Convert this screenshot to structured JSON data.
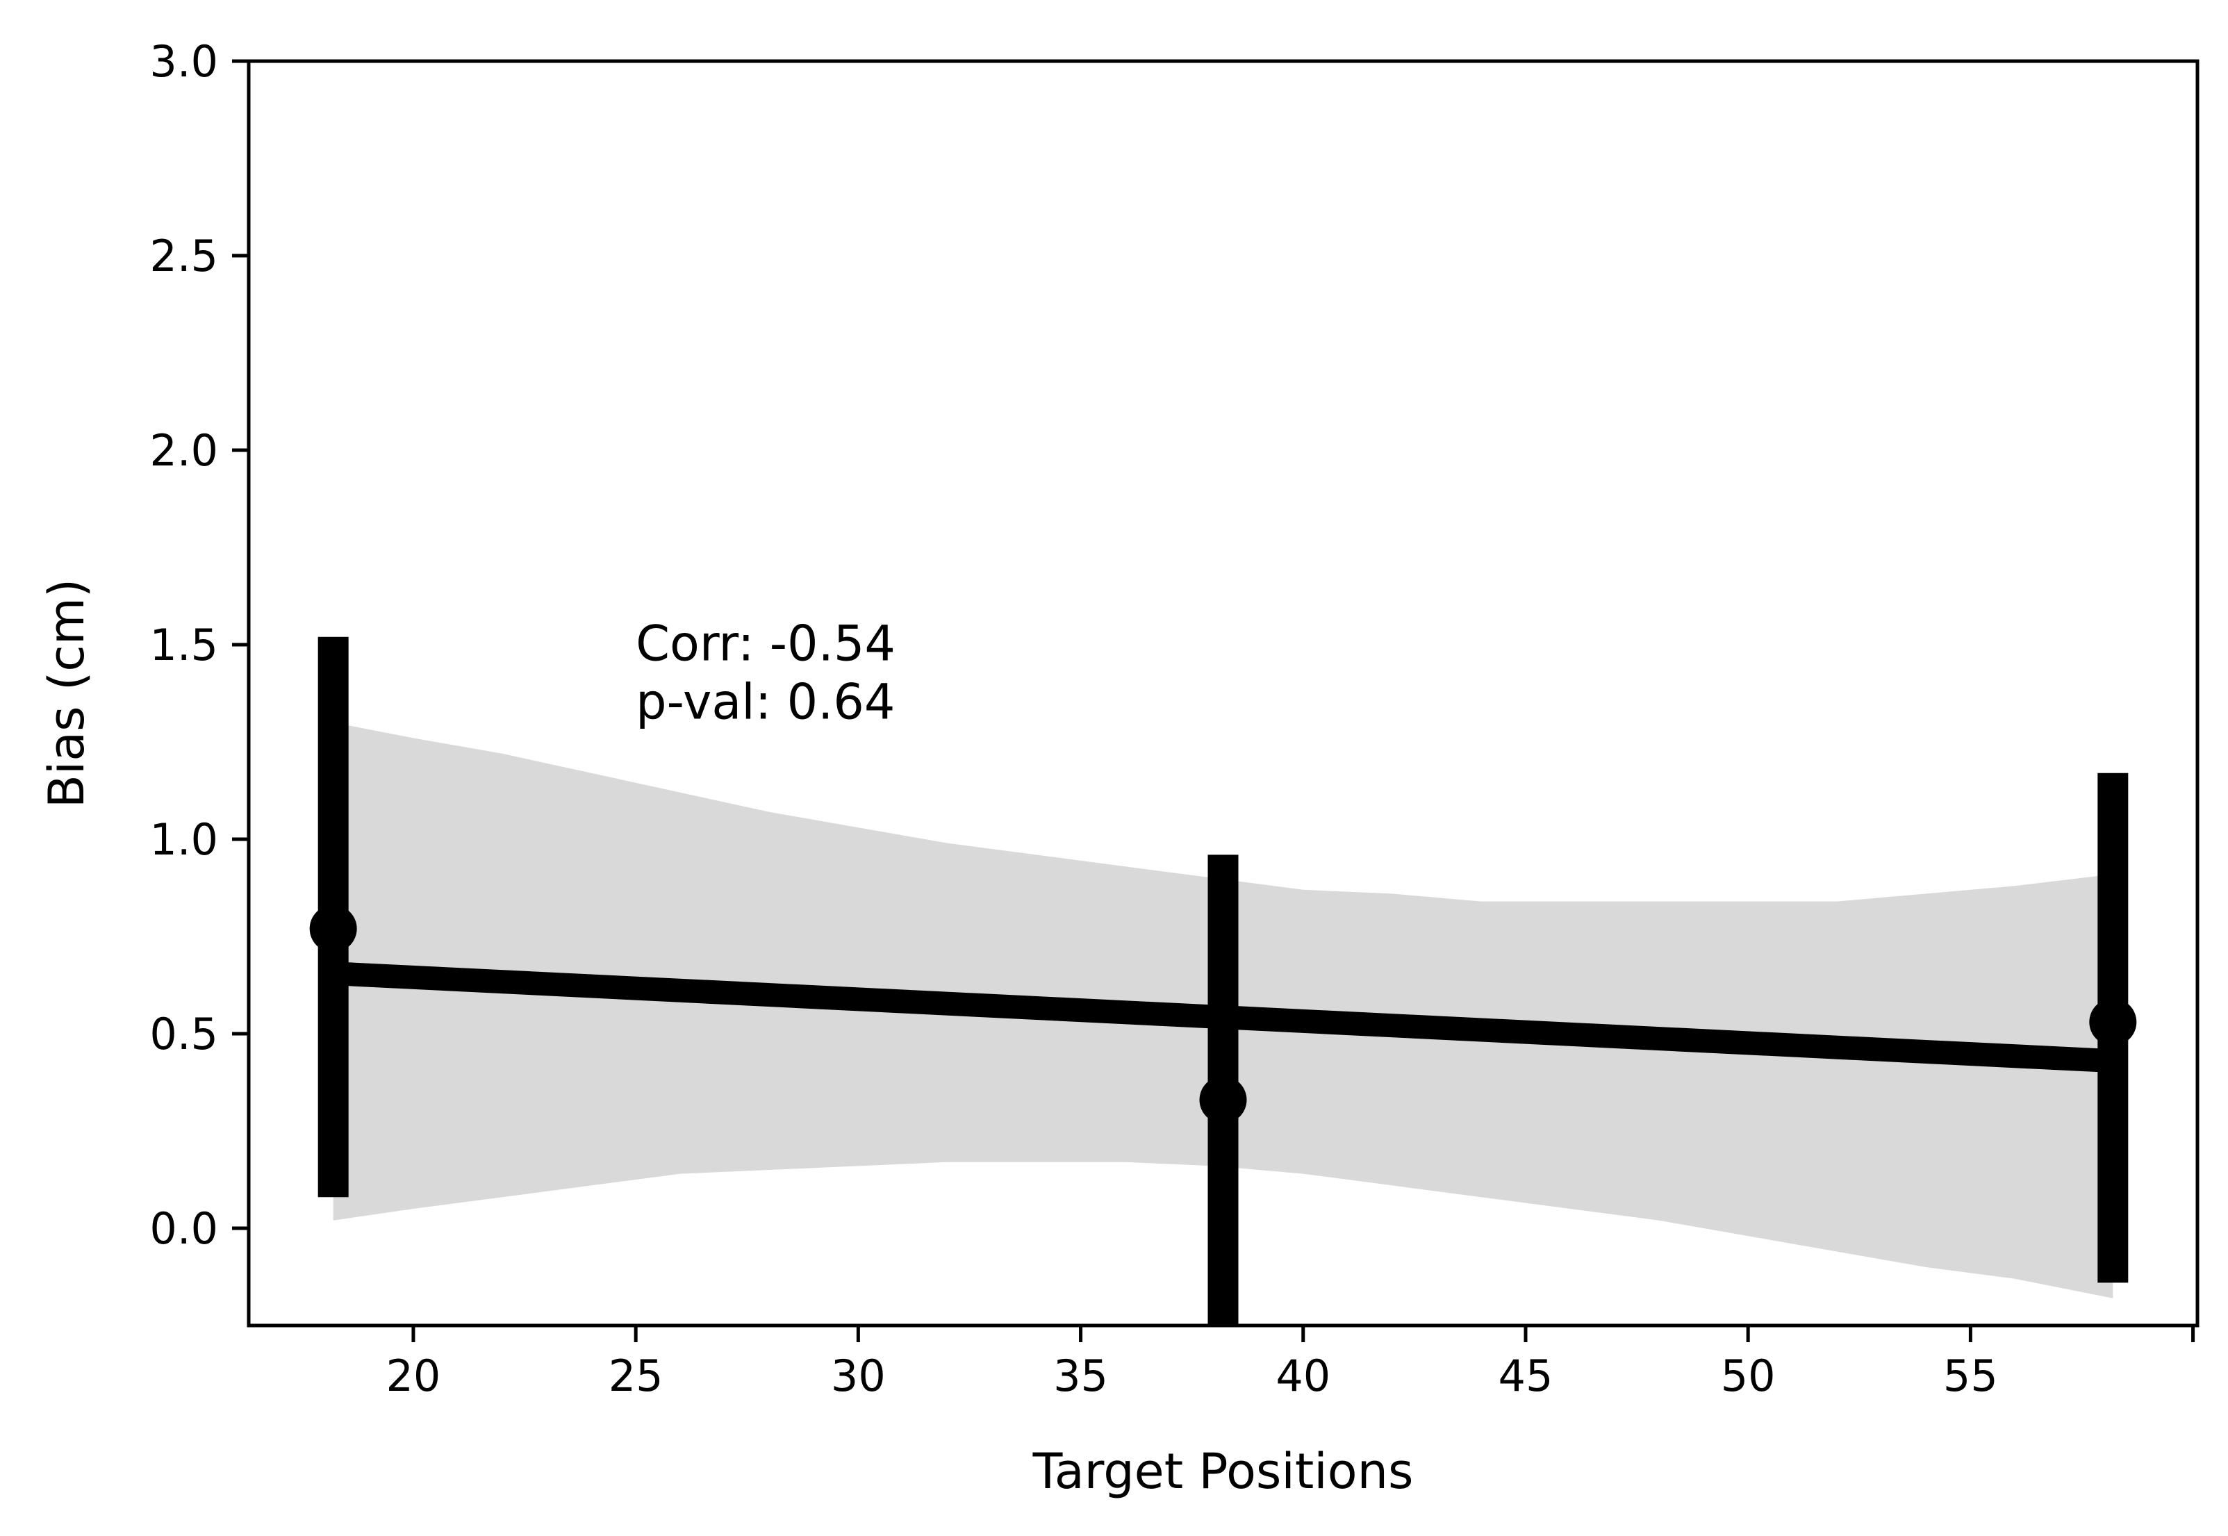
{
  "chart_data": {
    "type": "scatter",
    "xlabel": "Target Positions",
    "ylabel": "Bias (cm)",
    "xlim": [
      16.3,
      60.1
    ],
    "ylim": [
      -0.25,
      3.0
    ],
    "xticks": [
      20,
      25,
      30,
      35,
      40,
      45,
      50,
      55,
      60
    ],
    "xtick_labels": [
      "20",
      "25",
      "30",
      "35",
      "40",
      "45",
      "50",
      "55",
      ""
    ],
    "yticks": [
      0.0,
      0.5,
      1.0,
      1.5,
      2.0,
      2.5,
      3.0
    ],
    "ytick_labels": [
      "0.0",
      "0.5",
      "1.0",
      "1.5",
      "2.0",
      "2.5",
      "3.0"
    ],
    "points": [
      {
        "x": 18.2,
        "y": 0.77,
        "err_low": 0.08,
        "err_high": 1.52
      },
      {
        "x": 38.2,
        "y": 0.33,
        "err_low": -0.25,
        "err_high": 0.96
      },
      {
        "x": 58.2,
        "y": 0.53,
        "err_low": -0.14,
        "err_high": 1.17
      }
    ],
    "regression": {
      "x": [
        18.2,
        58.2
      ],
      "y": [
        0.655,
        0.43
      ]
    },
    "confidence_band": {
      "x": [
        18.2,
        20,
        22,
        24,
        26,
        28,
        30,
        32,
        34,
        36,
        38,
        40,
        42,
        44,
        46,
        48,
        50,
        52,
        54,
        56,
        58.2
      ],
      "upper": [
        1.3,
        1.26,
        1.22,
        1.17,
        1.12,
        1.07,
        1.03,
        0.99,
        0.96,
        0.93,
        0.9,
        0.87,
        0.86,
        0.84,
        0.84,
        0.84,
        0.84,
        0.84,
        0.86,
        0.88,
        0.91
      ],
      "lower": [
        0.02,
        0.05,
        0.08,
        0.11,
        0.14,
        0.15,
        0.16,
        0.17,
        0.17,
        0.17,
        0.16,
        0.14,
        0.11,
        0.08,
        0.05,
        0.02,
        -0.02,
        -0.06,
        -0.1,
        -0.13,
        -0.18
      ]
    },
    "grid": false,
    "colors": {
      "marks": "#000000",
      "band": "#d9d9d9"
    },
    "annotation": {
      "lines": [
        "Corr: -0.54",
        "p-val: 0.64"
      ],
      "x": 25.0,
      "y": 1.46
    }
  }
}
